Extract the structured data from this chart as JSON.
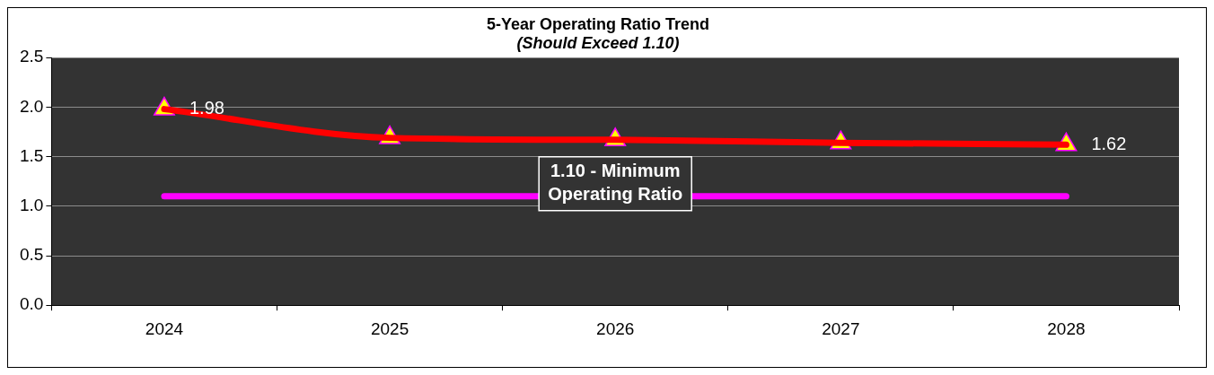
{
  "chart_data": {
    "type": "line",
    "title": "5-Year Operating Ratio Trend",
    "subtitle": "(Should Exceed 1.10)",
    "categories": [
      "2024",
      "2025",
      "2026",
      "2027",
      "2028"
    ],
    "series": [
      {
        "color": "#ff0000",
        "values": [
          1.98,
          1.69,
          1.67,
          1.64,
          1.62
        ],
        "value_labels": [
          "1.98",
          null,
          null,
          null,
          "1.62"
        ]
      }
    ],
    "ylim": [
      0,
      2.5
    ],
    "yticks": [
      {
        "value": 0,
        "label": "0.0"
      },
      {
        "value": 0.5,
        "label": "0.5"
      },
      {
        "value": 1,
        "label": "1.0"
      },
      {
        "value": 1.5,
        "label": "1.5"
      },
      {
        "value": 2,
        "label": "2.0"
      },
      {
        "value": 2.5,
        "label": "2.5"
      }
    ],
    "ref_lines": [
      {
        "axis": "y",
        "value": 1.1,
        "label": "1.10 - Minimum Operating Ratio",
        "color": "#ff00ff",
        "line_style": "solid"
      }
    ],
    "grid": "y",
    "legend": false,
    "marker": "triangle",
    "line_style": "solid"
  }
}
